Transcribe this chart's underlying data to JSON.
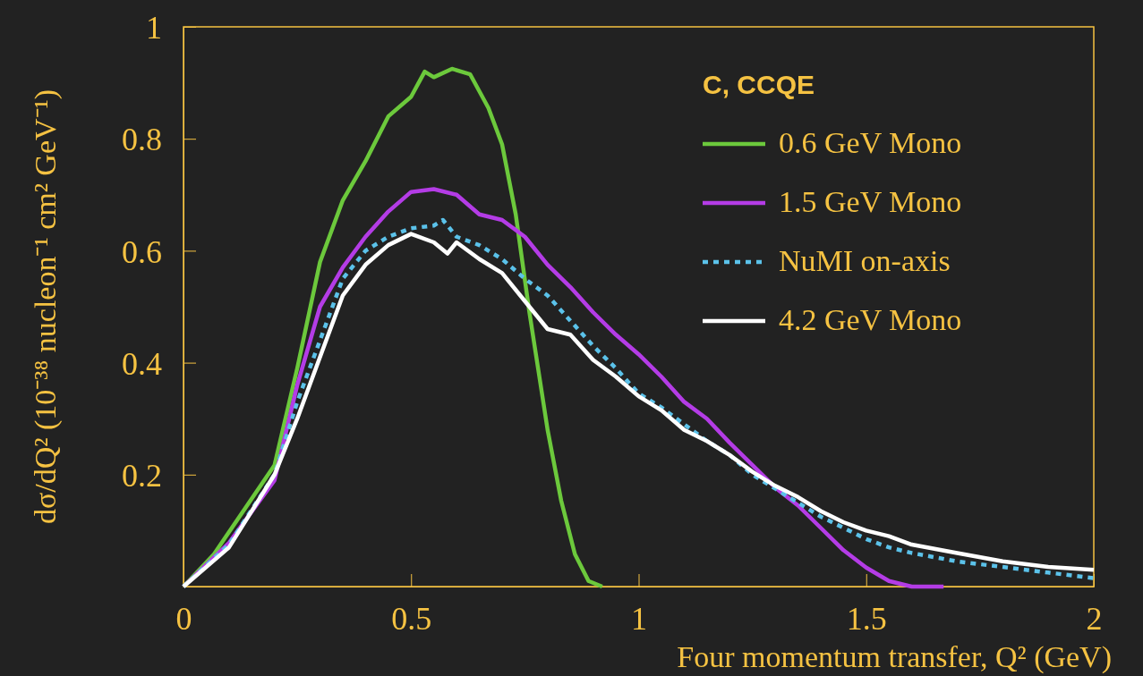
{
  "chart_data": {
    "type": "line",
    "xlabel": "Four momentum transfer, Q² (GeV)",
    "ylabel": "dσ/dQ² (10⁻³⁸ nucleon⁻¹ cm² GeV⁻¹)",
    "legend_title": "C, CCQE",
    "legend": "top right",
    "xlim": [
      0,
      2
    ],
    "ylim": [
      0,
      1
    ],
    "xticks": [
      0,
      0.5,
      1,
      1.5,
      2
    ],
    "yticks": [
      0.2,
      0.4,
      0.6,
      0.8,
      1
    ],
    "grid": false,
    "series": [
      {
        "name": "0.6 GeV Mono",
        "color": "#6cc93c",
        "line_style": "solid",
        "x": [
          0,
          0.067,
          0.2,
          0.25,
          0.3,
          0.35,
          0.4,
          0.45,
          0.5,
          0.53,
          0.55,
          0.59,
          0.63,
          0.67,
          0.7,
          0.73,
          0.76,
          0.8,
          0.83,
          0.86,
          0.89,
          0.92
        ],
        "values": [
          0,
          0.058,
          0.217,
          0.39,
          0.58,
          0.69,
          0.76,
          0.84,
          0.875,
          0.92,
          0.91,
          0.925,
          0.915,
          0.855,
          0.79,
          0.665,
          0.49,
          0.28,
          0.153,
          0.058,
          0.01,
          0
        ]
      },
      {
        "name": "1.5 GeV Mono",
        "color": "#b43ce6",
        "line_style": "solid",
        "x": [
          0,
          0.1,
          0.2,
          0.25,
          0.3,
          0.35,
          0.4,
          0.45,
          0.5,
          0.55,
          0.6,
          0.65,
          0.7,
          0.75,
          0.8,
          0.85,
          0.9,
          0.95,
          1,
          1.05,
          1.1,
          1.15,
          1.2,
          1.25,
          1.3,
          1.35,
          1.4,
          1.45,
          1.5,
          1.55,
          1.6,
          1.67
        ],
        "values": [
          0,
          0.078,
          0.19,
          0.36,
          0.5,
          0.57,
          0.625,
          0.67,
          0.705,
          0.71,
          0.7,
          0.665,
          0.655,
          0.625,
          0.575,
          0.535,
          0.49,
          0.45,
          0.415,
          0.375,
          0.33,
          0.3,
          0.257,
          0.217,
          0.177,
          0.145,
          0.105,
          0.065,
          0.034,
          0.01,
          0,
          0
        ]
      },
      {
        "name": "NuMI on-axis",
        "color": "#5bc2ea",
        "line_style": "dotted",
        "x": [
          0,
          0.1,
          0.2,
          0.25,
          0.3,
          0.35,
          0.4,
          0.45,
          0.5,
          0.55,
          0.57,
          0.6,
          0.65,
          0.7,
          0.75,
          0.8,
          0.85,
          0.9,
          0.95,
          1,
          1.05,
          1.1,
          1.15,
          1.2,
          1.25,
          1.3,
          1.35,
          1.4,
          1.45,
          1.5,
          1.55,
          1.6,
          1.7,
          1.8,
          1.9,
          2
        ],
        "values": [
          0,
          0.075,
          0.2,
          0.33,
          0.44,
          0.55,
          0.6,
          0.625,
          0.64,
          0.645,
          0.655,
          0.625,
          0.61,
          0.585,
          0.55,
          0.52,
          0.475,
          0.43,
          0.39,
          0.345,
          0.32,
          0.29,
          0.26,
          0.235,
          0.2,
          0.175,
          0.15,
          0.125,
          0.105,
          0.085,
          0.07,
          0.06,
          0.045,
          0.035,
          0.025,
          0.015
        ]
      },
      {
        "name": "4.2 GeV Mono",
        "color": "#ffffff",
        "line_style": "solid",
        "x": [
          0,
          0.1,
          0.2,
          0.25,
          0.3,
          0.35,
          0.4,
          0.45,
          0.5,
          0.55,
          0.58,
          0.6,
          0.65,
          0.7,
          0.75,
          0.8,
          0.85,
          0.9,
          0.95,
          1,
          1.05,
          1.1,
          1.15,
          1.2,
          1.25,
          1.3,
          1.35,
          1.4,
          1.45,
          1.5,
          1.55,
          1.6,
          1.7,
          1.8,
          1.9,
          2
        ],
        "values": [
          0,
          0.07,
          0.2,
          0.3,
          0.41,
          0.52,
          0.575,
          0.61,
          0.63,
          0.615,
          0.595,
          0.615,
          0.585,
          0.56,
          0.51,
          0.46,
          0.45,
          0.405,
          0.375,
          0.34,
          0.315,
          0.28,
          0.26,
          0.235,
          0.205,
          0.18,
          0.16,
          0.135,
          0.115,
          0.1,
          0.09,
          0.075,
          0.06,
          0.045,
          0.035,
          0.03
        ]
      }
    ]
  }
}
